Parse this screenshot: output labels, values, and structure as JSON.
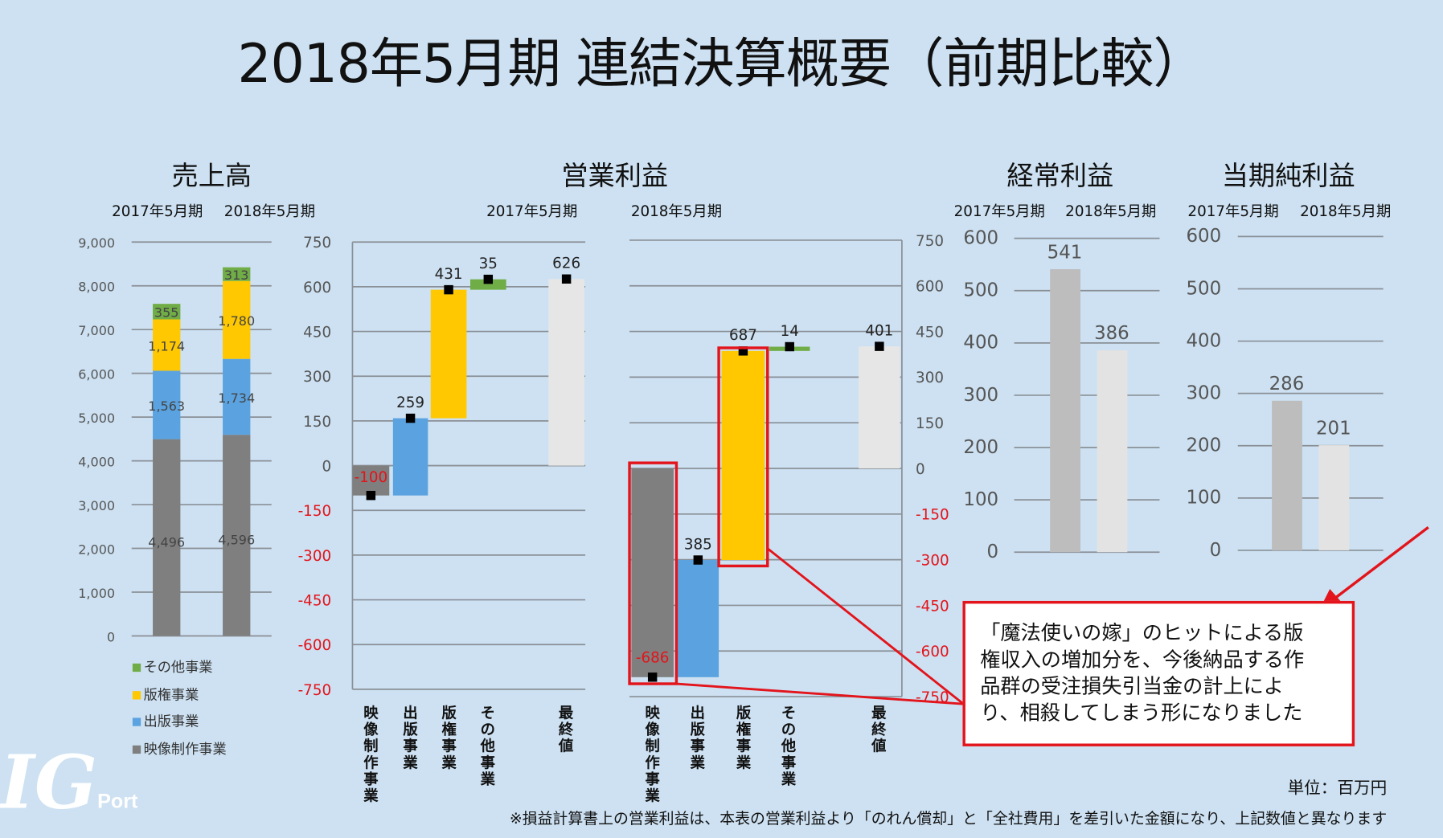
{
  "title": "2018年5月期 連結決算概要（前期比較）",
  "colors": {
    "background": "#cde1f2",
    "video": "#7f7f7f",
    "publishing": "#5ba3e0",
    "rights": "#ffc800",
    "other": "#70ad47",
    "final": "#e6e6e6",
    "prev_year_bar": "#bdbdbd",
    "curr_year_bar": "#e3e3e3",
    "negative": "#e3141b",
    "highlight": "#e3141b"
  },
  "sections": {
    "sales": "売上高",
    "operating": "営業利益",
    "ordinary": "経常利益",
    "net": "当期純利益"
  },
  "periods": {
    "prev": "2017年5月期",
    "curr": "2018年5月期"
  },
  "legend": [
    {
      "label": "その他事業",
      "color": "#70ad47"
    },
    {
      "label": "版権事業",
      "color": "#ffc800"
    },
    {
      "label": "出版事業",
      "color": "#5ba3e0"
    },
    {
      "label": "映像制作事業",
      "color": "#7f7f7f"
    }
  ],
  "annotation": {
    "lines": [
      "「魔法使いの嫁」のヒットによる版",
      "権収入の増加分を、今後納品する作",
      "品群の受注損失引当金の計上によ",
      "り、相殺してしまう形になりました"
    ]
  },
  "unit": "単位：百万円",
  "footnote": "※損益計算書上の営業利益は、本表の営業利益より「のれん償却」と「全社費用」を差引いた金額になり、上記数値と異なります",
  "logo": {
    "text": "IG",
    "sub": "Port"
  },
  "chart_data": [
    {
      "type": "bar",
      "stacked": true,
      "title": "売上高",
      "categories": [
        "2017年5月期",
        "2018年5月期"
      ],
      "ylim": [
        0,
        9000
      ],
      "yticks": [
        "9,000",
        "8,000",
        "7,000",
        "6,000",
        "5,000",
        "4,000",
        "3,000",
        "2,000",
        "1,000",
        "0"
      ],
      "grid": true,
      "legend": "bottom-left",
      "series": [
        {
          "name": "映像制作事業",
          "values": [
            4496,
            4596
          ],
          "labels": [
            "4,496",
            "4,596"
          ]
        },
        {
          "name": "出版事業",
          "values": [
            1563,
            1734
          ],
          "labels": [
            "1,563",
            "1,734"
          ]
        },
        {
          "name": "版権事業",
          "values": [
            1174,
            1780
          ],
          "labels": [
            "1,174",
            "1,780"
          ]
        },
        {
          "name": "その他事業",
          "values": [
            355,
            313
          ],
          "labels": [
            "355",
            "313"
          ]
        }
      ]
    },
    {
      "type": "bar",
      "waterfall": true,
      "title": "営業利益",
      "period": "2017年5月期",
      "categories": [
        "映像制作事業",
        "出版事業",
        "版権事業",
        "その他事業",
        "最終値"
      ],
      "values": [
        -100,
        259,
        431,
        35,
        626
      ],
      "ylim": [
        -750,
        750
      ],
      "yticks": [
        "750",
        "600",
        "450",
        "300",
        "150",
        "0",
        "-150",
        "-300",
        "-450",
        "-600",
        "-750"
      ],
      "grid": true
    },
    {
      "type": "bar",
      "waterfall": true,
      "title": "営業利益",
      "period": "2018年5月期",
      "categories": [
        "映像制作事業",
        "出版事業",
        "版権事業",
        "その他事業",
        "最終値"
      ],
      "values": [
        -686,
        385,
        687,
        14,
        401
      ],
      "ylim": [
        -750,
        750
      ],
      "yticks": [
        "750",
        "600",
        "450",
        "300",
        "150",
        "0",
        "-150",
        "-300",
        "-450",
        "-600",
        "-750"
      ],
      "grid": true,
      "highlighted": [
        "映像制作事業",
        "版権事業"
      ]
    },
    {
      "type": "bar",
      "title": "経常利益",
      "categories": [
        "2017年5月期",
        "2018年5月期"
      ],
      "values": [
        541,
        386
      ],
      "ylim": [
        0,
        600
      ],
      "yticks": [
        "600",
        "500",
        "400",
        "300",
        "200",
        "100",
        "0"
      ],
      "grid": true
    },
    {
      "type": "bar",
      "title": "当期純利益",
      "categories": [
        "2017年5月期",
        "2018年5月期"
      ],
      "values": [
        286,
        201
      ],
      "ylim": [
        0,
        600
      ],
      "yticks": [
        "600",
        "500",
        "400",
        "300",
        "200",
        "100",
        "0"
      ],
      "grid": true
    }
  ]
}
